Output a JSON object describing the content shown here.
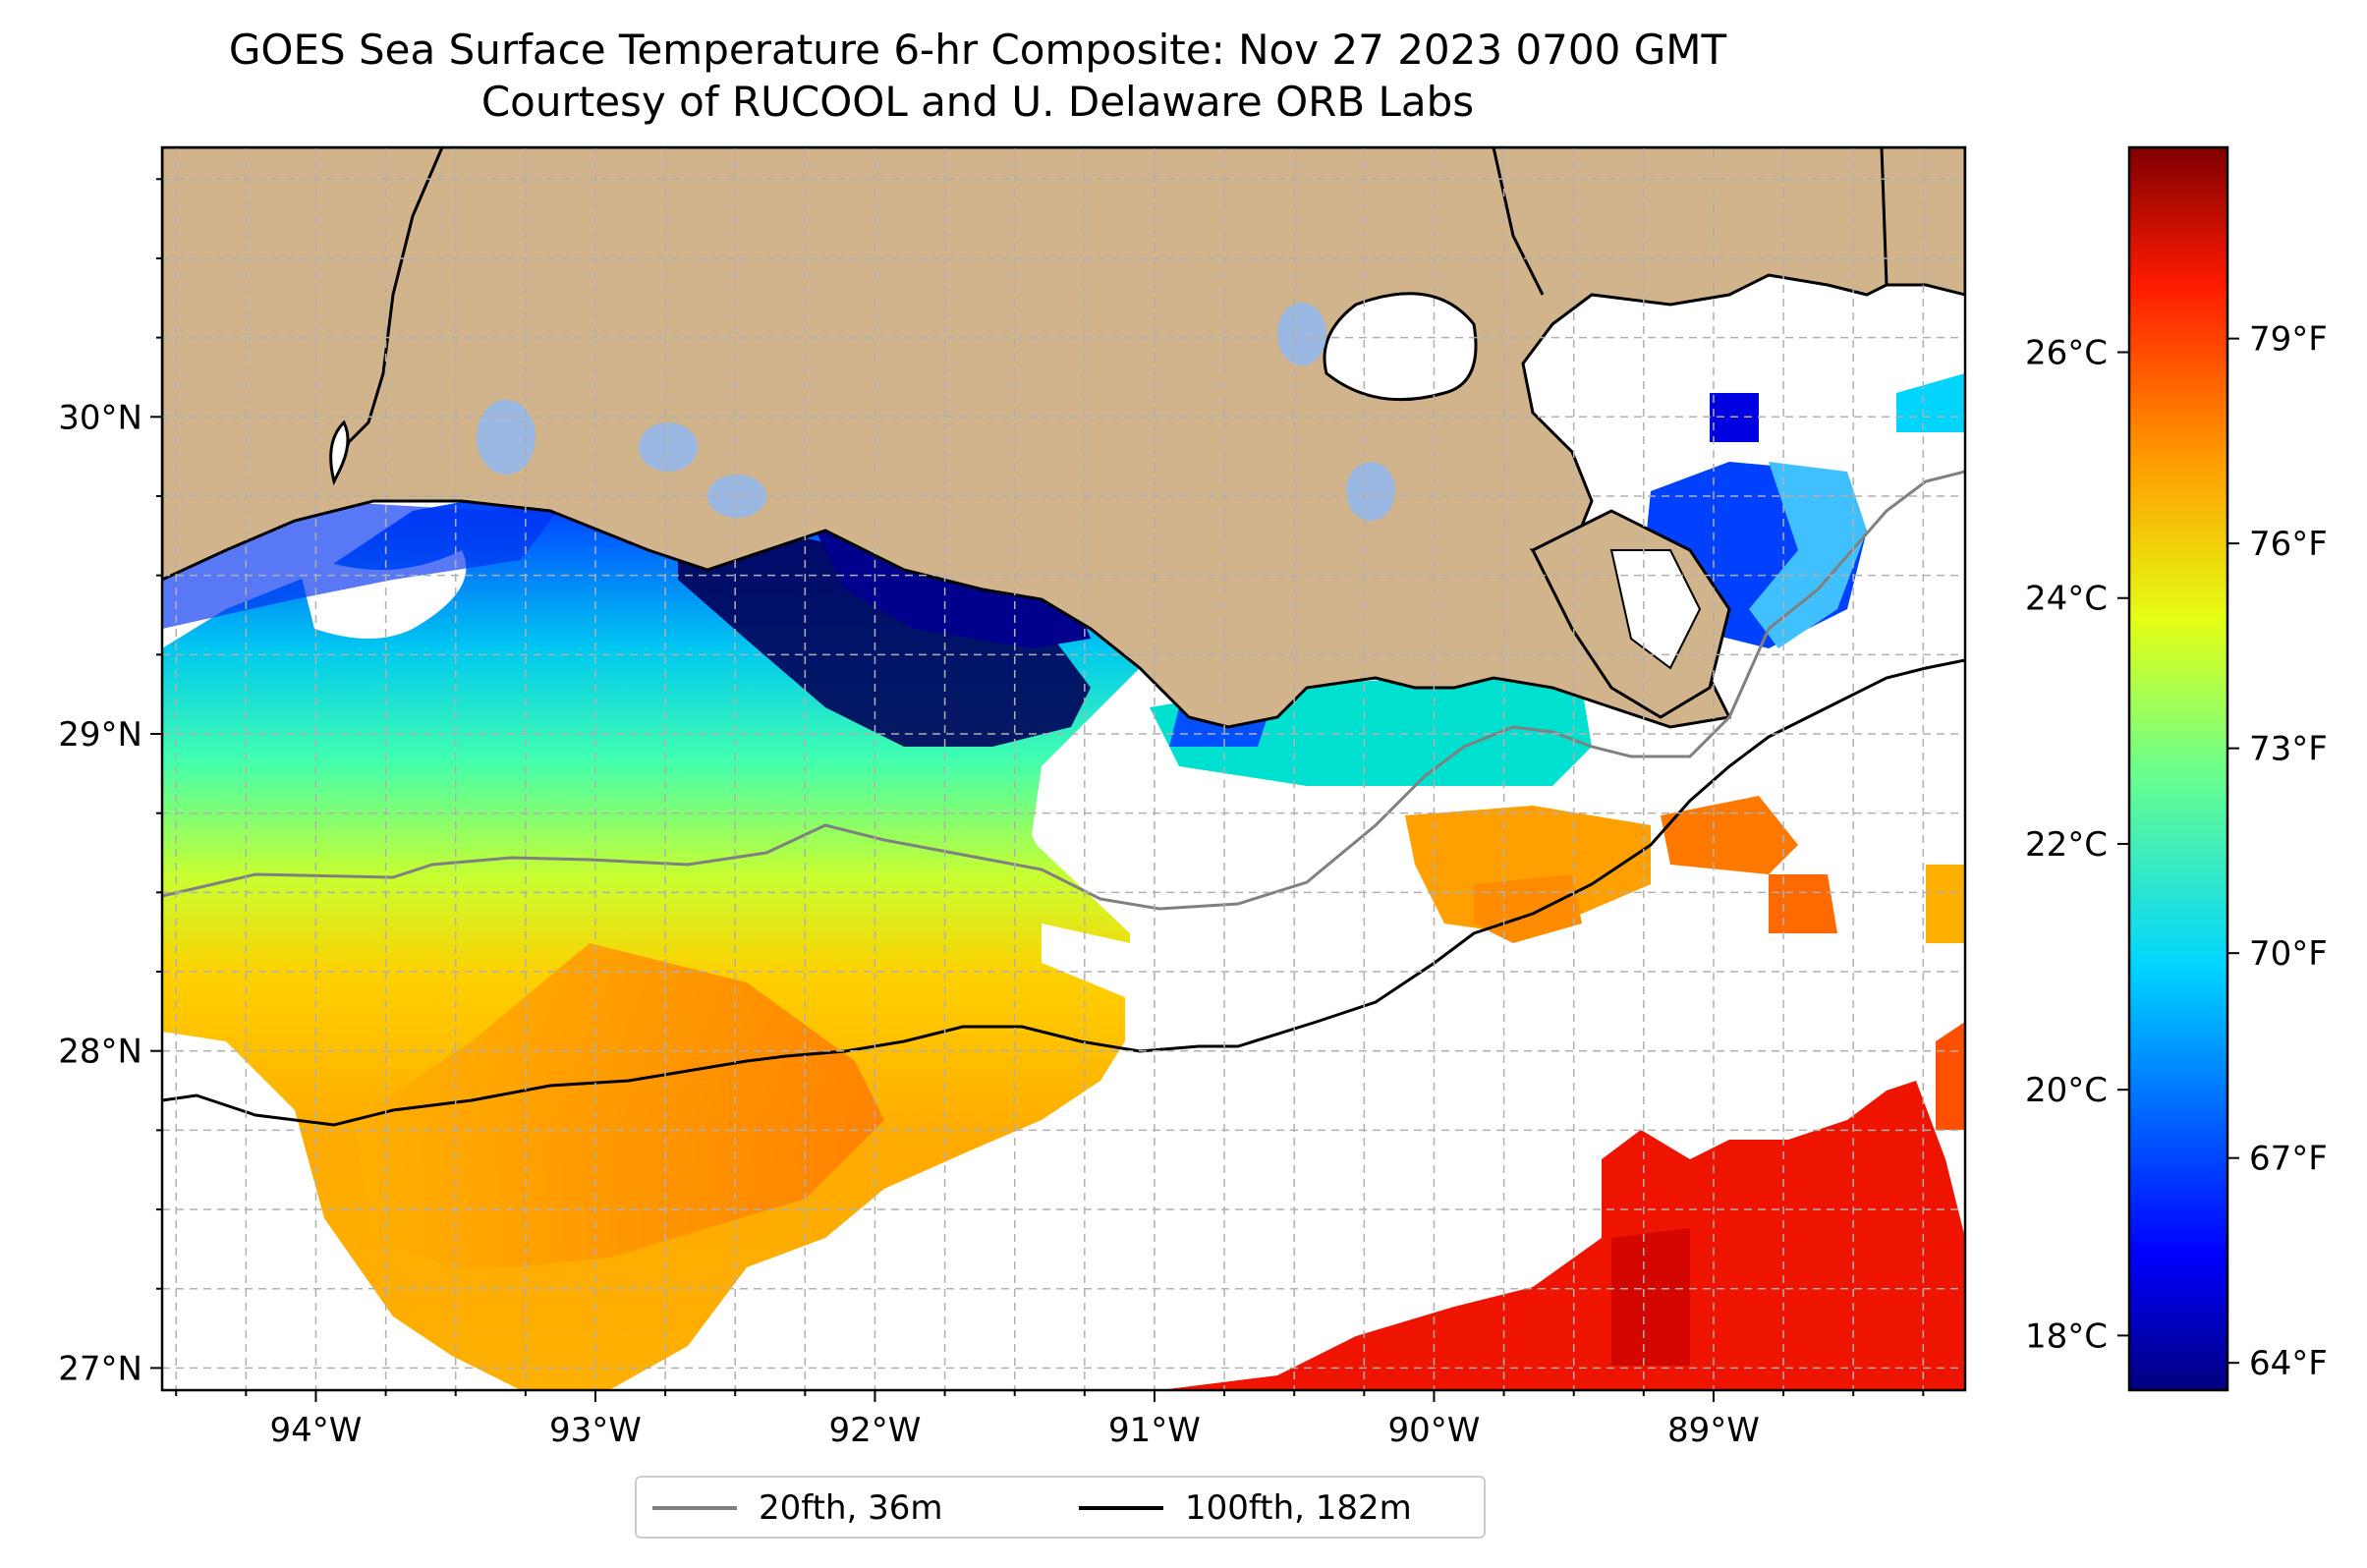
{
  "title": {
    "line1": "GOES Sea Surface Temperature 6-hr Composite: Nov 27 2023 0700 GMT",
    "line2": "Courtesy of RUCOOL and U. Delaware ORB Labs"
  },
  "map": {
    "extent": {
      "lon_min": -94.55,
      "lon_max": -88.1,
      "lat_min": 26.93,
      "lat_max": 30.85
    },
    "lon_ticks": [
      {
        "lon": -94,
        "label": "94°W"
      },
      {
        "lon": -93,
        "label": "93°W"
      },
      {
        "lon": -92,
        "label": "92°W"
      },
      {
        "lon": -91,
        "label": "91°W"
      },
      {
        "lon": -90,
        "label": "90°W"
      },
      {
        "lon": -89,
        "label": "89°W"
      }
    ],
    "lat_ticks": [
      {
        "lat": 30,
        "label": "30°N"
      },
      {
        "lat": 29,
        "label": "29°N"
      },
      {
        "lat": 28,
        "label": "28°N"
      },
      {
        "lat": 27,
        "label": "27°N"
      }
    ],
    "grid": true,
    "colors": {
      "land": "#d2b48c",
      "lakes": "#9bb8e3",
      "coast": "#000000",
      "grid": "#b0b0b0"
    }
  },
  "colorbar": {
    "colormap": "jet",
    "range_f": [
      63.6,
      81.8
    ],
    "fahrenheit_ticks": [
      {
        "value": 64,
        "label": "64°F"
      },
      {
        "value": 67,
        "label": "67°F"
      },
      {
        "value": 70,
        "label": "70°F"
      },
      {
        "value": 73,
        "label": "73°F"
      },
      {
        "value": 76,
        "label": "76°F"
      },
      {
        "value": 79,
        "label": "79°F"
      }
    ],
    "celsius_ticks": [
      {
        "value": 18,
        "label": "18°C"
      },
      {
        "value": 20,
        "label": "20°C"
      },
      {
        "value": 22,
        "label": "22°C"
      },
      {
        "value": 24,
        "label": "24°C"
      },
      {
        "value": 26,
        "label": "26°C"
      }
    ]
  },
  "legend": {
    "items": [
      {
        "label": "20fth, 36m",
        "color": "#808080"
      },
      {
        "label": "100fth, 182m",
        "color": "#000000"
      }
    ]
  }
}
